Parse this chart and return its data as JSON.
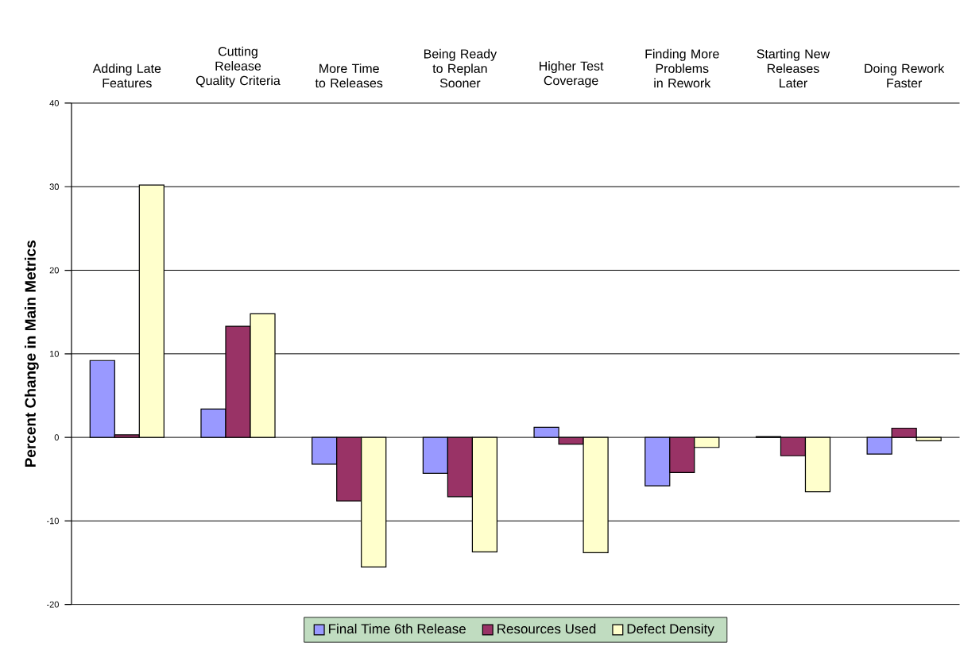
{
  "chart_data": {
    "type": "bar",
    "ylabel": "Percent Change in Main Metrics",
    "categories": [
      "Adding Late Features",
      "Cutting Release Quality Criteria",
      "More Time to Releases",
      "Being Ready to Replan Sooner",
      "Higher Test Coverage",
      "Finding More Problems in Rework",
      "Starting New Releases Later",
      "Doing Rework Faster"
    ],
    "series": [
      {
        "name": "Final Time 6th Release",
        "color": "#9999ff",
        "values": [
          9.2,
          3.4,
          -3.2,
          -4.3,
          1.2,
          -5.8,
          0.1,
          -2.0
        ]
      },
      {
        "name": "Resources Used",
        "color": "#993366",
        "values": [
          0.3,
          13.3,
          -7.6,
          -7.1,
          -0.8,
          -4.2,
          -2.2,
          1.1
        ]
      },
      {
        "name": "Defect Density",
        "color": "#ffffcc",
        "values": [
          30.2,
          14.8,
          -15.5,
          -13.7,
          -13.8,
          -1.2,
          -6.5,
          -0.4
        ]
      }
    ],
    "ylim": [
      -20,
      40
    ],
    "yticks": [
      -20,
      -10,
      0,
      10,
      20,
      30,
      40
    ],
    "grid": "y",
    "legend": "bottom"
  }
}
